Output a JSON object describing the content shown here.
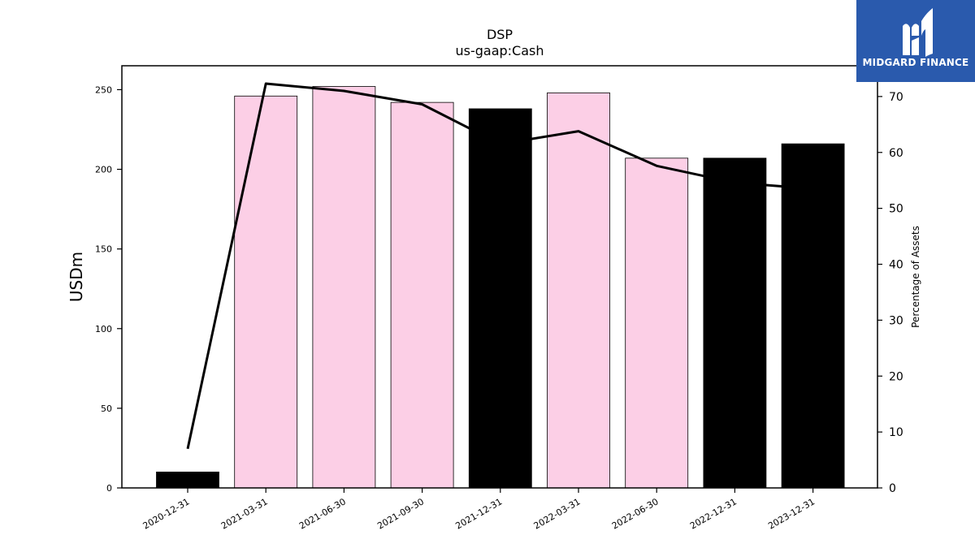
{
  "chart_data": {
    "type": "bar",
    "title": "DSP",
    "subtitle": "us-gaap:Cash",
    "ylabel": "USDm",
    "y2label": "Percentage of Assets",
    "categories": [
      "2020-12-31",
      "2021-03-31",
      "2021-06-30",
      "2021-09-30",
      "2021-12-31",
      "2022-03-31",
      "2022-06-30",
      "2022-12-31",
      "2023-12-31"
    ],
    "series": [
      {
        "type": "bar",
        "axis": "left",
        "values": [
          10,
          246,
          252,
          242,
          238,
          248,
          207,
          207,
          216
        ],
        "colors": [
          "#000000",
          "#fccfe6",
          "#fccfe6",
          "#fccfe6",
          "#000000",
          "#fccfe6",
          "#fccfe6",
          "#000000",
          "#000000"
        ]
      },
      {
        "type": "line",
        "axis": "right",
        "values": [
          7,
          72.3,
          71,
          68.6,
          61.5,
          63.8,
          57.6,
          54.6,
          53.5
        ],
        "color": "#000000"
      }
    ],
    "ylim": [
      0,
      265
    ],
    "y2lim": [
      0,
      75.5
    ],
    "yticks": [
      0,
      50,
      100,
      150,
      200,
      250
    ],
    "y2ticks": [
      0,
      10,
      20,
      30,
      40,
      50,
      60,
      70
    ],
    "grid": false,
    "legend": "none"
  },
  "logo": {
    "text": "MIDGARD FINANCE"
  }
}
